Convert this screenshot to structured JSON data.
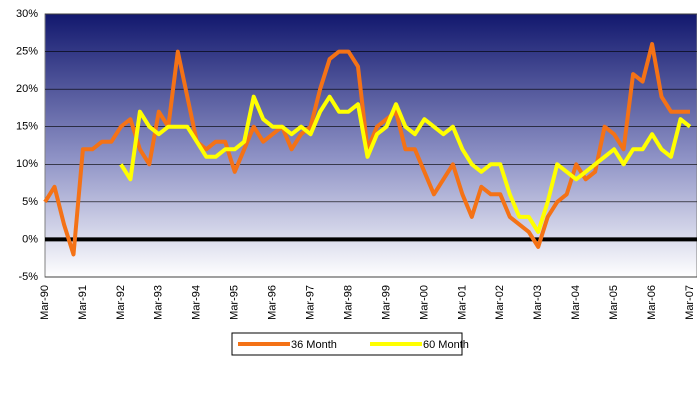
{
  "chart_data": {
    "type": "line",
    "categories": [
      "Mar-90",
      null,
      null,
      null,
      "Mar-91",
      null,
      null,
      null,
      "Mar-92",
      null,
      null,
      null,
      "Mar-93",
      null,
      null,
      null,
      "Mar-94",
      null,
      null,
      null,
      "Mar-95",
      null,
      null,
      null,
      "Mar-96",
      null,
      null,
      null,
      "Mar-97",
      null,
      null,
      null,
      "Mar-98",
      null,
      null,
      null,
      "Mar-99",
      null,
      null,
      null,
      "Mar-00",
      null,
      null,
      null,
      "Mar-01",
      null,
      null,
      null,
      "Mar-02",
      null,
      null,
      null,
      "Mar-03",
      null,
      null,
      null,
      "Mar-04",
      null,
      null,
      null,
      "Mar-05",
      null,
      null,
      null,
      "Mar-06",
      null,
      null,
      null,
      "Mar-07"
    ],
    "series": [
      {
        "name": "36 Month",
        "color": "#f47216",
        "values": [
          5,
          7,
          2,
          -2,
          12,
          12,
          13,
          13,
          15,
          16,
          12,
          10,
          17,
          15,
          25,
          19,
          13,
          12,
          13,
          13,
          9,
          12,
          15,
          13,
          14,
          15,
          12,
          14,
          15,
          20,
          24,
          25,
          25,
          23,
          12,
          15,
          16,
          17,
          12,
          12,
          9,
          6,
          8,
          10,
          6,
          3,
          7,
          6,
          6,
          3,
          2,
          1,
          -1,
          3,
          5,
          6,
          10,
          8,
          9,
          15,
          14,
          12,
          22,
          21,
          26,
          19,
          17,
          17,
          17
        ]
      },
      {
        "name": "60 Month",
        "color": "#ffff00",
        "values": [
          null,
          null,
          null,
          null,
          null,
          null,
          null,
          null,
          10,
          8,
          17,
          15,
          14,
          15,
          15,
          15,
          13,
          11,
          11,
          12,
          12,
          13,
          19,
          16,
          15,
          15,
          14,
          15,
          14,
          17,
          19,
          17,
          17,
          18,
          11,
          14,
          15,
          18,
          15,
          14,
          16,
          15,
          14,
          15,
          12,
          10,
          9,
          10,
          10,
          6,
          3,
          3,
          1,
          5,
          10,
          9,
          8,
          9,
          10,
          11,
          12,
          10,
          12,
          12,
          14,
          12,
          11,
          16,
          15
        ]
      }
    ],
    "ylim": [
      -5,
      30
    ],
    "yticks": [
      {
        "value": -5,
        "label": "-5%"
      },
      {
        "value": 0,
        "label": "0%"
      },
      {
        "value": 5,
        "label": "5%"
      },
      {
        "value": 10,
        "label": "10%"
      },
      {
        "value": 15,
        "label": "15%"
      },
      {
        "value": 20,
        "label": "20%"
      },
      {
        "value": 25,
        "label": "25%"
      },
      {
        "value": 30,
        "label": "30%"
      }
    ],
    "grid": true,
    "legend": "bottom"
  }
}
